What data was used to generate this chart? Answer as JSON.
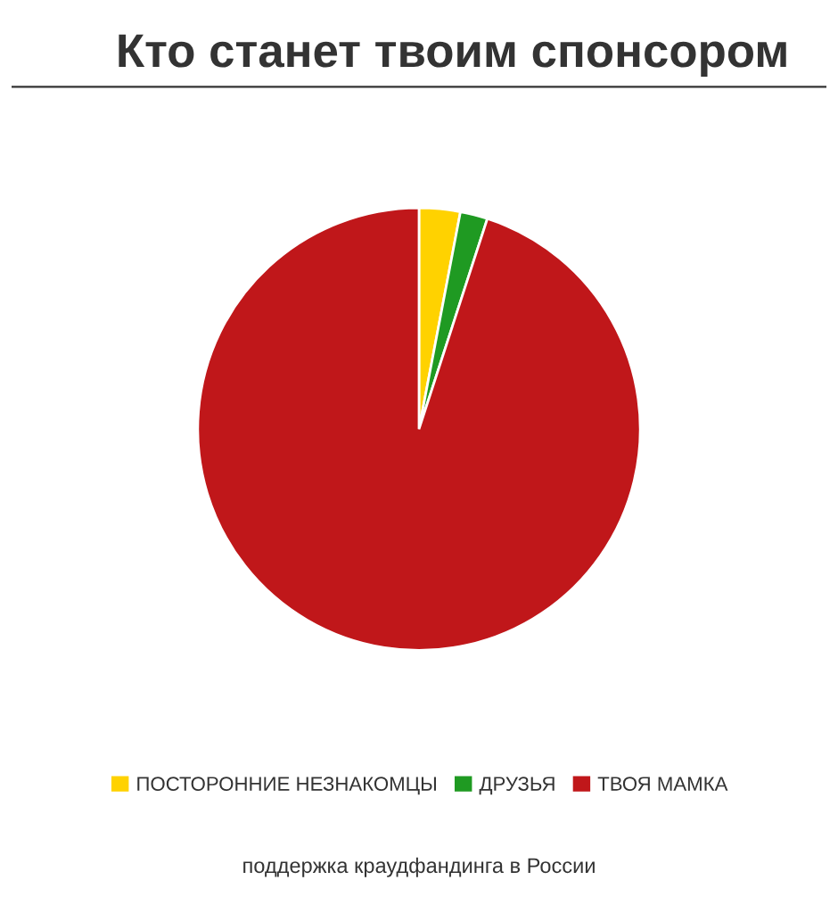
{
  "chart_data": {
    "type": "pie",
    "title": "Кто станет твоим спонсором",
    "categories": [
      "ПОСТОРОННИЕ НЕЗНАКОМЦЫ",
      "ДРУЗЬЯ",
      "ТВОЯ МАМКА"
    ],
    "values": [
      3,
      2,
      95
    ],
    "colors": [
      "#ffd200",
      "#1f9a22",
      "#c0171a"
    ],
    "legend": "bottom",
    "annotations": [
      "поддержка краудфандинга в России"
    ]
  }
}
